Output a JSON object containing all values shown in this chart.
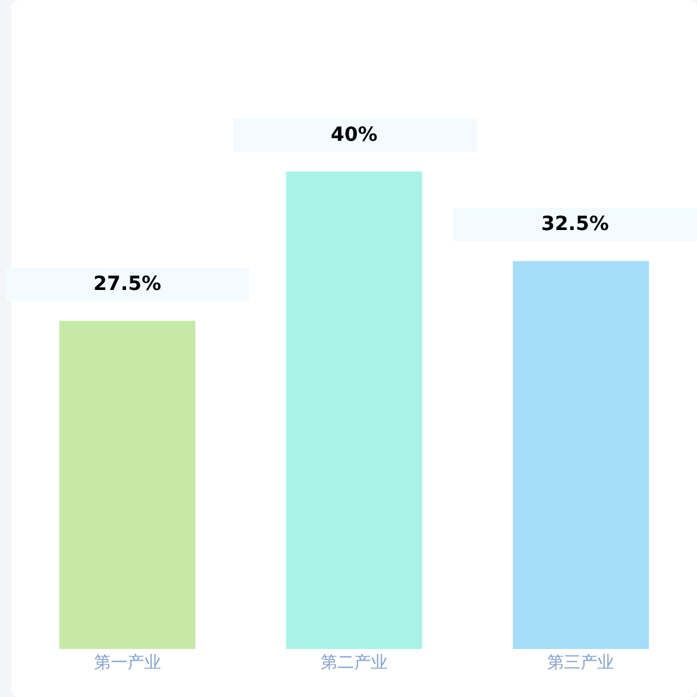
{
  "chart_data": {
    "type": "bar",
    "categories": [
      "第一产业",
      "第二产业",
      "第三产业"
    ],
    "values": [
      27.5,
      40,
      32.5
    ],
    "value_labels": [
      "27.5%",
      "40%",
      "32.5%"
    ],
    "colors": [
      "#c6e9a8",
      "#a8f3e6",
      "#a3ddf8"
    ],
    "grid": false,
    "legend": false
  }
}
